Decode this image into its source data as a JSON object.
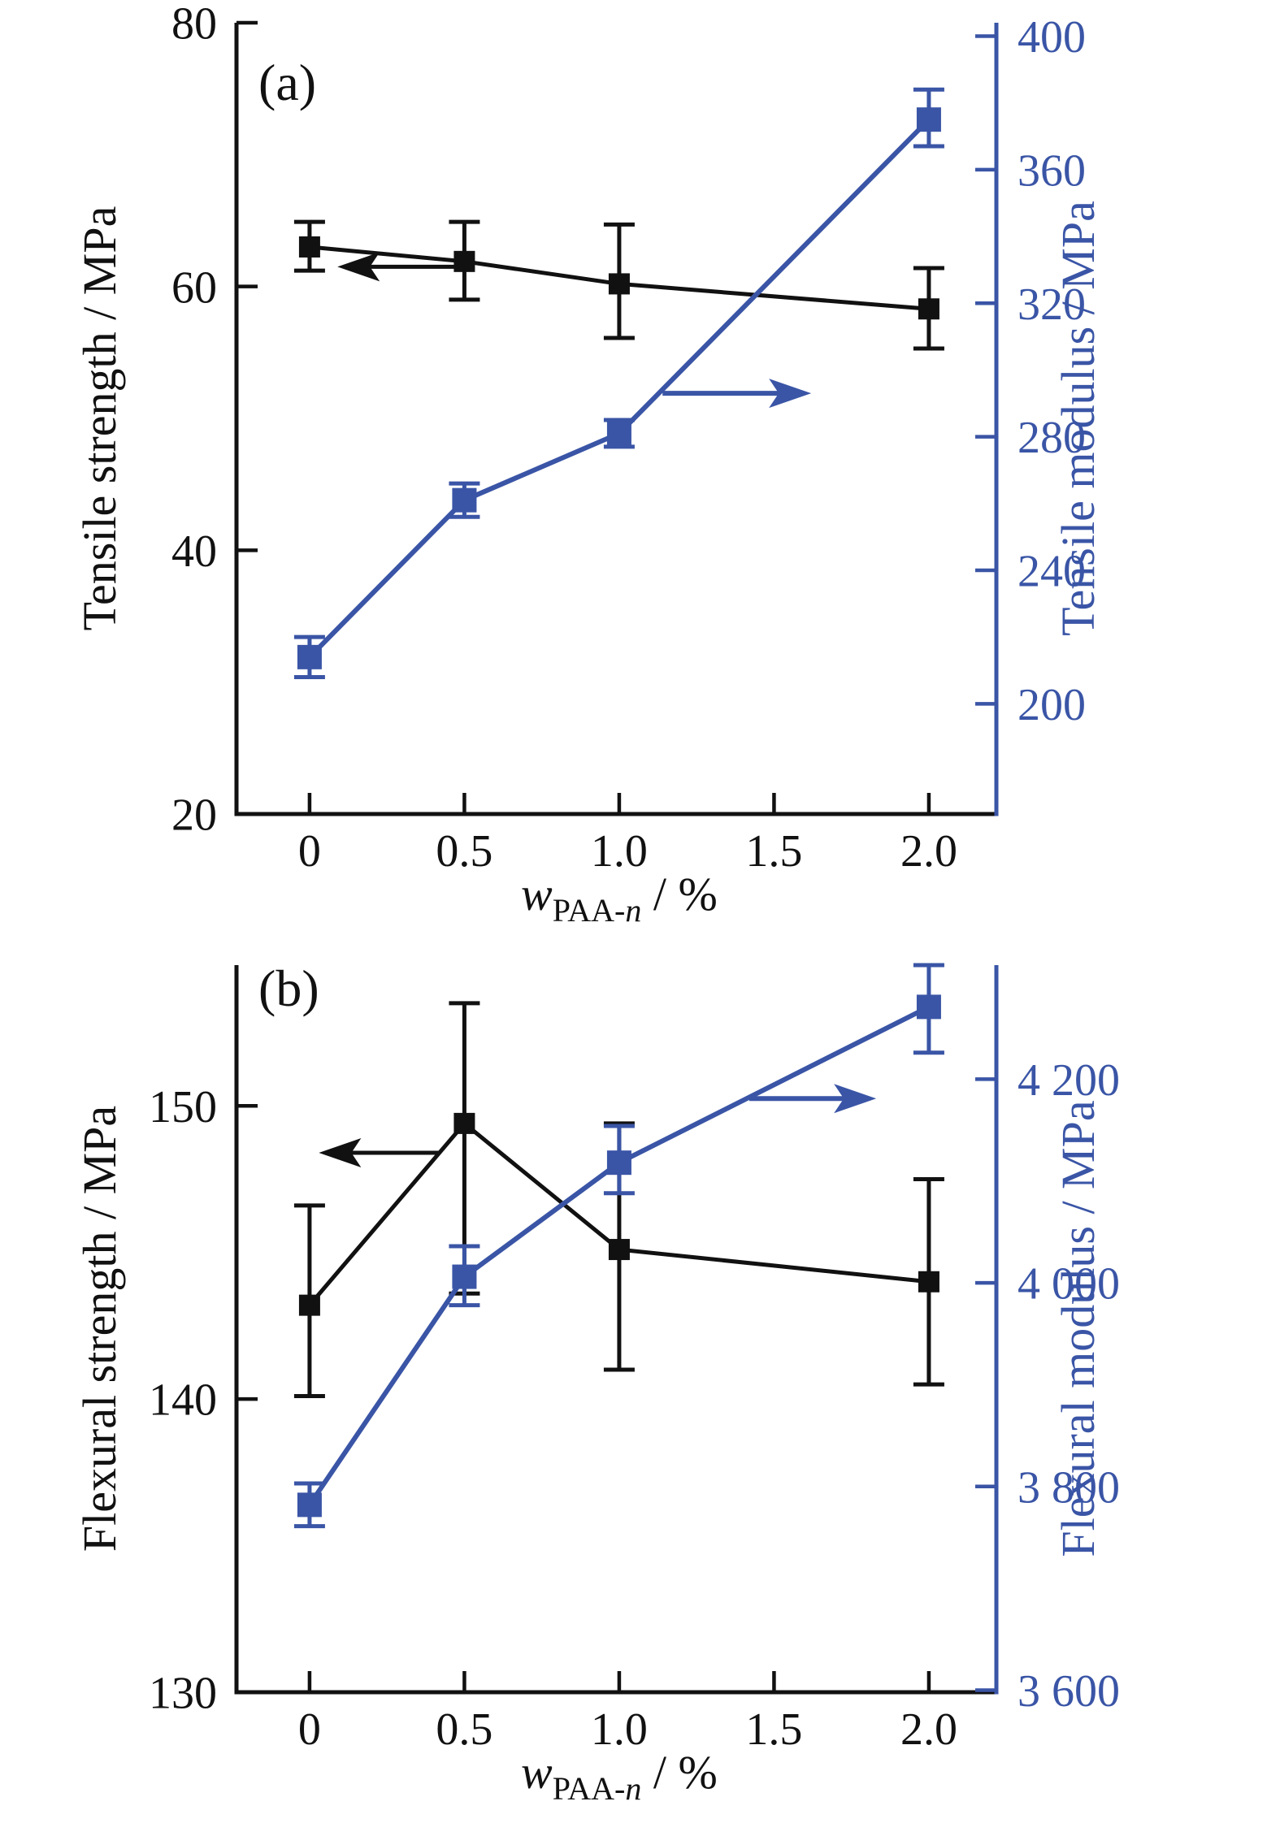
{
  "page": {
    "background": "#ffffff",
    "accent_black": "#111111",
    "accent_blue": "#3A55A6"
  },
  "figure": {
    "description": "Two-panel scientific line chart: (a) tensile properties and (b) flexural properties versus PAA-n mass fraction",
    "panel_labels": [
      "(a)",
      "(b)"
    ]
  },
  "chart_data": [
    {
      "id": "a",
      "type": "line",
      "panel_label": "(a)",
      "x_title": {
        "variable": "w",
        "subscript_roman": "PAA-",
        "subscript_italic": "n",
        "rest": " / %"
      },
      "x_range": [
        -0.236,
        2.218
      ],
      "x_ticks": [
        0,
        0.5,
        1.0,
        1.5,
        2.0
      ],
      "x_tick_labels": [
        "0",
        "0.5",
        "1.0",
        "1.5",
        "2.0"
      ],
      "left_axis": {
        "title": "Tensile strength / MPa",
        "range": [
          20,
          80
        ],
        "ticks": [
          20,
          40,
          60,
          80
        ],
        "tick_labels": [
          "20",
          "40",
          "60",
          "80"
        ],
        "color": "#111111"
      },
      "right_axis": {
        "title": "Tensile modulus / MPa",
        "range": [
          167,
          404
        ],
        "ticks": [
          200,
          240,
          280,
          320,
          360,
          400
        ],
        "tick_labels": [
          "200",
          "240",
          "280",
          "320",
          "360",
          "400"
        ],
        "color": "#3A55A6"
      },
      "series": [
        {
          "name": "tensile-strength",
          "axis": "left",
          "color": "#111111",
          "marker": "square",
          "marker_size": 26,
          "x": [
            0,
            0.5,
            1.0,
            2.0
          ],
          "y": [
            63.0,
            61.9,
            60.2,
            58.3
          ],
          "err_up": [
            1.9,
            3.0,
            4.5,
            3.1
          ],
          "err_down": [
            1.8,
            2.9,
            4.1,
            3.0
          ],
          "arrow": {
            "direction": "left",
            "y": 61.5,
            "x_tail": 0.49,
            "x_tip": 0.09
          }
        },
        {
          "name": "tensile-modulus",
          "axis": "right",
          "color": "#3A55A6",
          "marker": "square",
          "marker_size": 30,
          "x": [
            0,
            0.5,
            1.0,
            2.0
          ],
          "y": [
            214,
            261,
            281,
            375
          ],
          "err_up": [
            6,
            5,
            4,
            9
          ],
          "err_down": [
            6,
            5,
            4,
            8
          ],
          "arrow": {
            "direction": "right",
            "y": 293,
            "x_tail": 1.14,
            "x_tip": 1.62
          }
        }
      ]
    },
    {
      "id": "b",
      "type": "line",
      "panel_label": "(b)",
      "x_title": {
        "variable": "w",
        "subscript_roman": "PAA-",
        "subscript_italic": "n",
        "rest": " / %"
      },
      "x_range": [
        -0.236,
        2.218
      ],
      "x_ticks": [
        0,
        0.5,
        1.0,
        1.5,
        2.0
      ],
      "x_tick_labels": [
        "0",
        "0.5",
        "1.0",
        "1.5",
        "2.0"
      ],
      "left_axis": {
        "title": "Flexural strength / MPa",
        "range": [
          130,
          154.8
        ],
        "ticks": [
          130,
          140,
          150
        ],
        "tick_labels": [
          "130",
          "140",
          "150"
        ],
        "color": "#111111"
      },
      "right_axis": {
        "title": "Flexural modulus / MPa",
        "range": [
          3598,
          4312
        ],
        "ticks": [
          3600,
          3800,
          4000,
          4200
        ],
        "tick_labels": [
          "3 600",
          "3 800",
          "4 000",
          "4 200"
        ],
        "color": "#3A55A6"
      },
      "series": [
        {
          "name": "flexural-strength",
          "axis": "left",
          "color": "#111111",
          "marker": "square",
          "marker_size": 26,
          "x": [
            0,
            0.5,
            1.0,
            2.0
          ],
          "y": [
            143.2,
            149.4,
            145.1,
            144.0
          ],
          "err_up": [
            3.4,
            4.1,
            4.3,
            3.5
          ],
          "err_down": [
            3.1,
            5.8,
            4.1,
            3.5
          ],
          "arrow": {
            "direction": "left",
            "y": 148.4,
            "x_tail": 0.42,
            "x_tip": 0.03
          }
        },
        {
          "name": "flexural-modulus",
          "axis": "right",
          "color": "#3A55A6",
          "marker": "square",
          "marker_size": 30,
          "x": [
            0,
            0.5,
            1.0,
            2.0
          ],
          "y": [
            3782,
            4006,
            4118,
            4271
          ],
          "err_up": [
            21,
            30,
            36,
            41
          ],
          "err_down": [
            21,
            28,
            30,
            45
          ],
          "arrow": {
            "direction": "right",
            "y": 4181,
            "x_tail": 1.42,
            "x_tip": 1.83
          }
        }
      ]
    }
  ]
}
